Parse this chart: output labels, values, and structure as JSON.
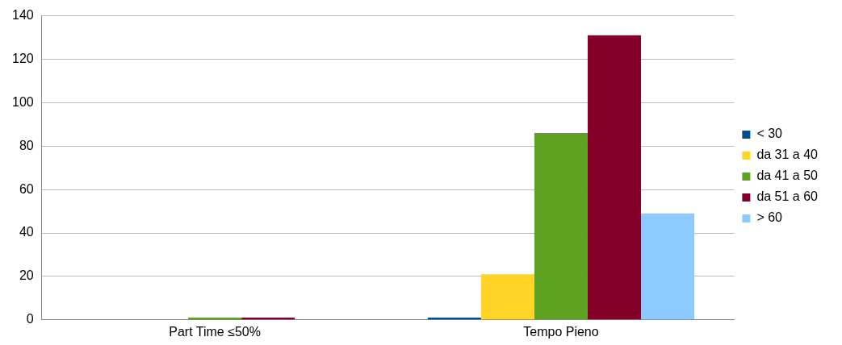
{
  "chart_data": {
    "type": "bar",
    "categories": [
      "Part Time ≤50%",
      "Tempo Pieno"
    ],
    "series": [
      {
        "name": "< 30",
        "color": "#004d8f",
        "values": [
          0,
          1
        ]
      },
      {
        "name": "da 31 a 40",
        "color": "#ffd426",
        "values": [
          0,
          21
        ]
      },
      {
        "name": "da 41 a 50",
        "color": "#5ea222",
        "values": [
          1,
          86
        ]
      },
      {
        "name": "da 51 a 60",
        "color": "#850029",
        "values": [
          1,
          131
        ]
      },
      {
        "name": "> 60",
        "color": "#8ccaff",
        "values": [
          0,
          49
        ]
      }
    ],
    "ylim": [
      0,
      140
    ],
    "yticks": [
      0,
      20,
      40,
      60,
      80,
      100,
      120,
      140
    ],
    "grid": "y",
    "legend": "right"
  }
}
